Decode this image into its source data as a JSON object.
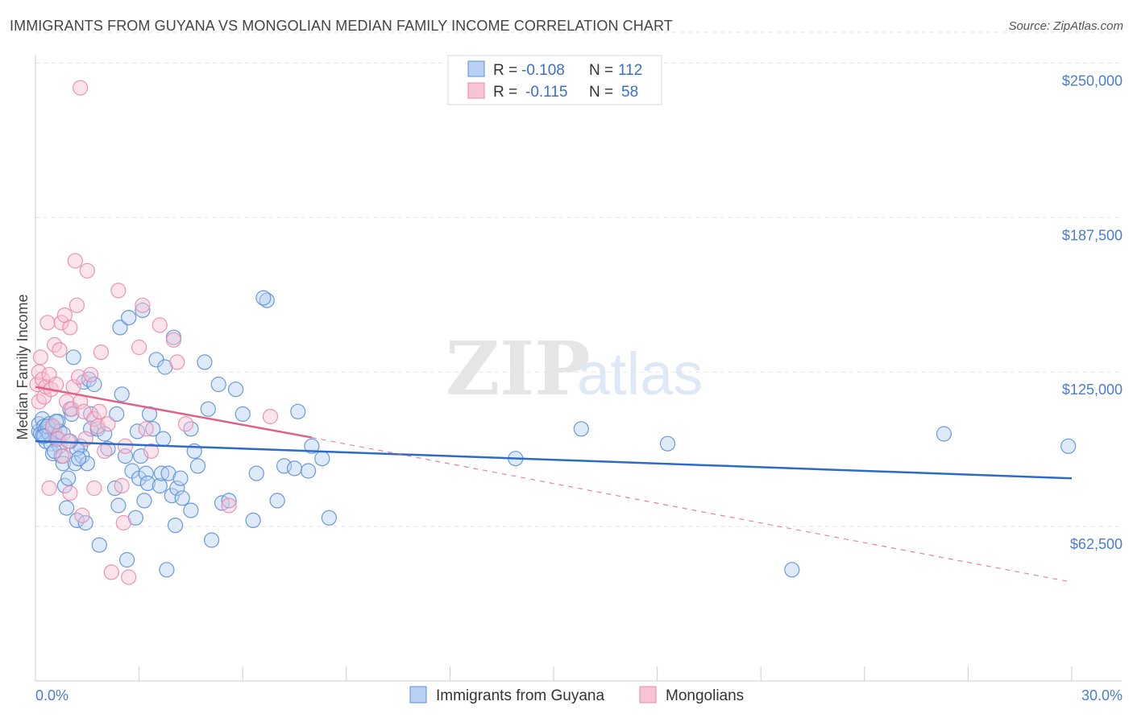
{
  "header": {
    "title": "IMMIGRANTS FROM GUYANA VS MONGOLIAN MEDIAN FAMILY INCOME CORRELATION CHART",
    "source": "Source: ZipAtlas.com"
  },
  "watermark": {
    "zip": "ZIP",
    "atlas": "atlas"
  },
  "colors": {
    "blue": "#5b8fd6",
    "blue_fill": "#b8d0f2",
    "blue_line": "#2a6cc8",
    "pink": "#e98aaa",
    "pink_fill": "#f7c4d4",
    "pink_line": "#e0608a",
    "axis_text": "#4a7ed0",
    "grid": "#e3e3e3"
  },
  "legend_box": {
    "rows": [
      {
        "r_label": "R =",
        "r_value": "-0.108",
        "n_label": "N =",
        "n_value": "112",
        "series": "blue"
      },
      {
        "r_label": "R =",
        "r_value": "-0.115",
        "n_label": "N =",
        "n_value": "58",
        "series": "pink"
      }
    ]
  },
  "chart_data": {
    "type": "scatter",
    "title": "IMMIGRANTS FROM GUYANA VS MONGOLIAN MEDIAN FAMILY INCOME CORRELATION CHART",
    "xlabel": "",
    "ylabel": "Median Family Income",
    "xlim": [
      0,
      30
    ],
    "ylim": [
      0,
      262500
    ],
    "x_tick_labels": [
      "0.0%",
      "30.0%"
    ],
    "y_ticks": [
      62500,
      125000,
      187500,
      250000
    ],
    "y_tick_labels": [
      "$62,500",
      "$125,000",
      "$187,500",
      "$250,000"
    ],
    "grid": true,
    "legend_position": "bottom",
    "series": [
      {
        "name": "Immigrants from Guyana",
        "color": "blue",
        "R": -0.108,
        "N": 112,
        "trend": {
          "x": [
            0,
            30
          ],
          "y": [
            97000,
            82000
          ],
          "dashed_extension": false
        },
        "points": [
          [
            0.1,
            101000
          ],
          [
            0.1,
            104000
          ],
          [
            0.15,
            100000
          ],
          [
            0.2,
            106000
          ],
          [
            0.2,
            99000
          ],
          [
            0.25,
            103000
          ],
          [
            0.3,
            102000
          ],
          [
            0.3,
            97000
          ],
          [
            0.35,
            101000
          ],
          [
            0.4,
            104000
          ],
          [
            0.4,
            100000
          ],
          [
            0.45,
            96000
          ],
          [
            0.5,
            102000
          ],
          [
            0.5,
            92000
          ],
          [
            0.55,
            101000
          ],
          [
            0.6,
            98000
          ],
          [
            0.65,
            105000
          ],
          [
            0.7,
            101000
          ],
          [
            0.7,
            95000
          ],
          [
            0.75,
            91000
          ],
          [
            0.8,
            88000
          ],
          [
            0.85,
            79000
          ],
          [
            0.9,
            70000
          ],
          [
            0.95,
            82000
          ],
          [
            1.0,
            110000
          ],
          [
            1.05,
            108000
          ],
          [
            1.1,
            131000
          ],
          [
            1.15,
            88000
          ],
          [
            1.2,
            65000
          ],
          [
            1.3,
            95000
          ],
          [
            1.35,
            91000
          ],
          [
            1.4,
            121000
          ],
          [
            1.45,
            64000
          ],
          [
            1.5,
            88000
          ],
          [
            1.55,
            122000
          ],
          [
            1.6,
            102000
          ],
          [
            1.6,
            108000
          ],
          [
            1.7,
            120000
          ],
          [
            1.8,
            102000
          ],
          [
            1.85,
            55000
          ],
          [
            2.1,
            94000
          ],
          [
            2.3,
            78000
          ],
          [
            2.35,
            108000
          ],
          [
            2.4,
            71000
          ],
          [
            2.45,
            143000
          ],
          [
            2.5,
            116000
          ],
          [
            2.6,
            91000
          ],
          [
            2.65,
            49000
          ],
          [
            2.7,
            147000
          ],
          [
            2.8,
            85000
          ],
          [
            2.9,
            66000
          ],
          [
            2.95,
            101000
          ],
          [
            3.0,
            82000
          ],
          [
            3.05,
            91000
          ],
          [
            3.1,
            150000
          ],
          [
            3.15,
            73000
          ],
          [
            3.2,
            84000
          ],
          [
            3.25,
            80000
          ],
          [
            3.4,
            102000
          ],
          [
            3.5,
            130000
          ],
          [
            3.6,
            79000
          ],
          [
            3.65,
            84000
          ],
          [
            3.7,
            98000
          ],
          [
            3.75,
            127000
          ],
          [
            3.8,
            45000
          ],
          [
            3.85,
            84000
          ],
          [
            3.95,
            75000
          ],
          [
            4.0,
            139000
          ],
          [
            4.05,
            63000
          ],
          [
            4.1,
            78000
          ],
          [
            4.2,
            82000
          ],
          [
            4.25,
            74000
          ],
          [
            4.5,
            69000
          ],
          [
            4.5,
            102000
          ],
          [
            4.6,
            93000
          ],
          [
            4.7,
            87000
          ],
          [
            4.9,
            129000
          ],
          [
            5.0,
            110000
          ],
          [
            5.1,
            57000
          ],
          [
            5.3,
            120000
          ],
          [
            5.4,
            72000
          ],
          [
            5.6,
            73000
          ],
          [
            5.8,
            118000
          ],
          [
            6.0,
            108000
          ],
          [
            6.3,
            65000
          ],
          [
            6.4,
            84000
          ],
          [
            6.7,
            154000
          ],
          [
            7.0,
            73000
          ],
          [
            7.2,
            87000
          ],
          [
            7.5,
            86000
          ],
          [
            7.6,
            109000
          ],
          [
            7.9,
            85000
          ],
          [
            8.0,
            95000
          ],
          [
            8.3,
            90000
          ],
          [
            8.5,
            66000
          ],
          [
            13.9,
            90000
          ],
          [
            15.8,
            102000
          ],
          [
            18.3,
            96000
          ],
          [
            21.9,
            45000
          ],
          [
            26.3,
            100000
          ],
          [
            29.9,
            95000
          ],
          [
            6.6,
            155000
          ],
          [
            1.2,
            94000
          ],
          [
            0.35,
            103000
          ],
          [
            0.55,
            93000
          ],
          [
            0.8,
            100000
          ],
          [
            1.0,
            97000
          ],
          [
            0.25,
            99000
          ],
          [
            0.6,
            105000
          ],
          [
            1.25,
            90000
          ],
          [
            2.0,
            100000
          ],
          [
            3.3,
            108000
          ]
        ]
      },
      {
        "name": "Mongolians",
        "color": "pink",
        "R": -0.115,
        "N": 58,
        "trend": {
          "x": [
            0,
            8
          ],
          "y": [
            119000,
            98500
          ],
          "dashed_extension": true,
          "dashed_to": {
            "x": 30,
            "y": 40000
          }
        },
        "points": [
          [
            0.05,
            120000
          ],
          [
            0.1,
            113000
          ],
          [
            0.1,
            125000
          ],
          [
            0.15,
            131000
          ],
          [
            0.2,
            122000
          ],
          [
            0.25,
            115000
          ],
          [
            0.3,
            119000
          ],
          [
            0.35,
            145000
          ],
          [
            0.4,
            124000
          ],
          [
            0.45,
            118000
          ],
          [
            0.5,
            103000
          ],
          [
            0.55,
            136000
          ],
          [
            0.6,
            120000
          ],
          [
            0.65,
            98000
          ],
          [
            0.7,
            134000
          ],
          [
            0.75,
            145000
          ],
          [
            0.8,
            91000
          ],
          [
            0.85,
            148000
          ],
          [
            0.9,
            113000
          ],
          [
            0.95,
            97000
          ],
          [
            1.0,
            143000
          ],
          [
            1.05,
            110000
          ],
          [
            1.1,
            119000
          ],
          [
            1.15,
            170000
          ],
          [
            1.2,
            152000
          ],
          [
            1.25,
            123000
          ],
          [
            1.3,
            113000
          ],
          [
            1.35,
            67000
          ],
          [
            1.4,
            109000
          ],
          [
            1.45,
            98000
          ],
          [
            1.5,
            166000
          ],
          [
            1.6,
            124000
          ],
          [
            1.7,
            106000
          ],
          [
            1.8,
            103000
          ],
          [
            1.85,
            109000
          ],
          [
            1.9,
            133000
          ],
          [
            2.0,
            93000
          ],
          [
            2.1,
            104000
          ],
          [
            2.2,
            44000
          ],
          [
            2.4,
            158000
          ],
          [
            2.5,
            79000
          ],
          [
            2.55,
            64000
          ],
          [
            2.6,
            95000
          ],
          [
            2.7,
            42000
          ],
          [
            3.0,
            135000
          ],
          [
            3.1,
            152000
          ],
          [
            3.2,
            102000
          ],
          [
            3.35,
            93000
          ],
          [
            3.6,
            144000
          ],
          [
            4.0,
            138000
          ],
          [
            4.1,
            129000
          ],
          [
            4.35,
            104000
          ],
          [
            5.6,
            71000
          ],
          [
            6.8,
            107000
          ],
          [
            1.3,
            240000
          ],
          [
            0.4,
            78000
          ],
          [
            1.0,
            76000
          ],
          [
            1.7,
            78000
          ]
        ]
      }
    ]
  },
  "bottom_legend": {
    "items": [
      {
        "label": "Immigrants from Guyana",
        "series": "blue"
      },
      {
        "label": "Mongolians",
        "series": "pink"
      }
    ]
  }
}
